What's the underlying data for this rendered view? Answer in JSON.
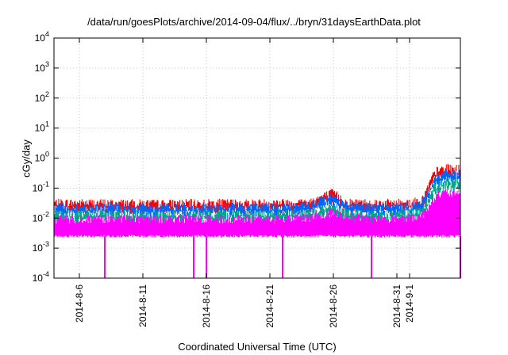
{
  "chart_data": {
    "type": "line",
    "title": "/data/run/goesPlots/archive/2014-09-04/flux/../bryn/31daysEarthData.plot",
    "xlabel": "Coordinated Universal Time (UTC)",
    "ylabel": "cGy/day",
    "yscale": "log",
    "ylim": [
      0.0001,
      10000
    ],
    "yticks": [
      {
        "value": 0.0001,
        "base": "10",
        "exp": "-4"
      },
      {
        "value": 0.001,
        "base": "10",
        "exp": "-3"
      },
      {
        "value": 0.01,
        "base": "10",
        "exp": "-2"
      },
      {
        "value": 0.1,
        "base": "10",
        "exp": "-1"
      },
      {
        "value": 1,
        "base": "10",
        "exp": "0"
      },
      {
        "value": 10,
        "base": "10",
        "exp": "1"
      },
      {
        "value": 100,
        "base": "10",
        "exp": "2"
      },
      {
        "value": 1000,
        "base": "10",
        "exp": "3"
      },
      {
        "value": 10000,
        "base": "10",
        "exp": "4"
      }
    ],
    "xlim": [
      "2014-08-04",
      "2014-09-05"
    ],
    "xticks": [
      "2014-8-6",
      "2014-8-11",
      "2014-8-16",
      "2014-8-21",
      "2014-8-26",
      "2014-8-31",
      "2014-9-1"
    ],
    "grid": true,
    "series": [
      {
        "color": "#ff0000",
        "x": [
          "2014-08-04",
          "2014-08-08",
          "2014-08-12",
          "2014-08-16",
          "2014-08-20",
          "2014-08-24",
          "2014-08-26",
          "2014-08-27",
          "2014-08-30",
          "2014-09-01",
          "2014-09-02",
          "2014-09-03",
          "2014-09-04",
          "2014-09-05"
        ],
        "y": [
          0.04,
          0.04,
          0.038,
          0.04,
          0.04,
          0.042,
          0.09,
          0.042,
          0.04,
          0.042,
          0.05,
          0.45,
          0.6,
          0.55
        ]
      },
      {
        "color": "#0066ff",
        "x": [
          "2014-08-04",
          "2014-08-08",
          "2014-08-12",
          "2014-08-16",
          "2014-08-20",
          "2014-08-24",
          "2014-08-26",
          "2014-08-27",
          "2014-08-30",
          "2014-09-01",
          "2014-09-02",
          "2014-09-03",
          "2014-09-04",
          "2014-09-05"
        ],
        "y": [
          0.03,
          0.03,
          0.028,
          0.03,
          0.03,
          0.032,
          0.07,
          0.032,
          0.03,
          0.032,
          0.04,
          0.3,
          0.4,
          0.38
        ]
      },
      {
        "color": "#00aa88",
        "x": [
          "2014-08-04",
          "2014-08-08",
          "2014-08-12",
          "2014-08-16",
          "2014-08-20",
          "2014-08-24",
          "2014-08-26",
          "2014-08-27",
          "2014-08-30",
          "2014-09-01",
          "2014-09-02",
          "2014-09-03",
          "2014-09-04",
          "2014-09-05"
        ],
        "y": [
          0.017,
          0.017,
          0.016,
          0.017,
          0.017,
          0.018,
          0.03,
          0.018,
          0.017,
          0.018,
          0.022,
          0.15,
          0.2,
          0.18
        ]
      },
      {
        "color": "#ff00ff",
        "x": [
          "2014-08-04",
          "2014-08-08",
          "2014-08-12",
          "2014-08-16",
          "2014-08-20",
          "2014-08-24",
          "2014-08-26",
          "2014-08-27",
          "2014-08-30",
          "2014-09-01",
          "2014-09-02",
          "2014-09-03",
          "2014-09-04",
          "2014-09-05"
        ],
        "y": [
          0.012,
          0.012,
          0.012,
          0.012,
          0.012,
          0.013,
          0.02,
          0.013,
          0.012,
          0.013,
          0.015,
          0.07,
          0.09,
          0.07
        ],
        "low": 0.0025
      }
    ],
    "dropouts": [
      "2014-08-08",
      "2014-08-15",
      "2014-08-16",
      "2014-08-22",
      "2014-08-29",
      "2014-09-05"
    ]
  }
}
